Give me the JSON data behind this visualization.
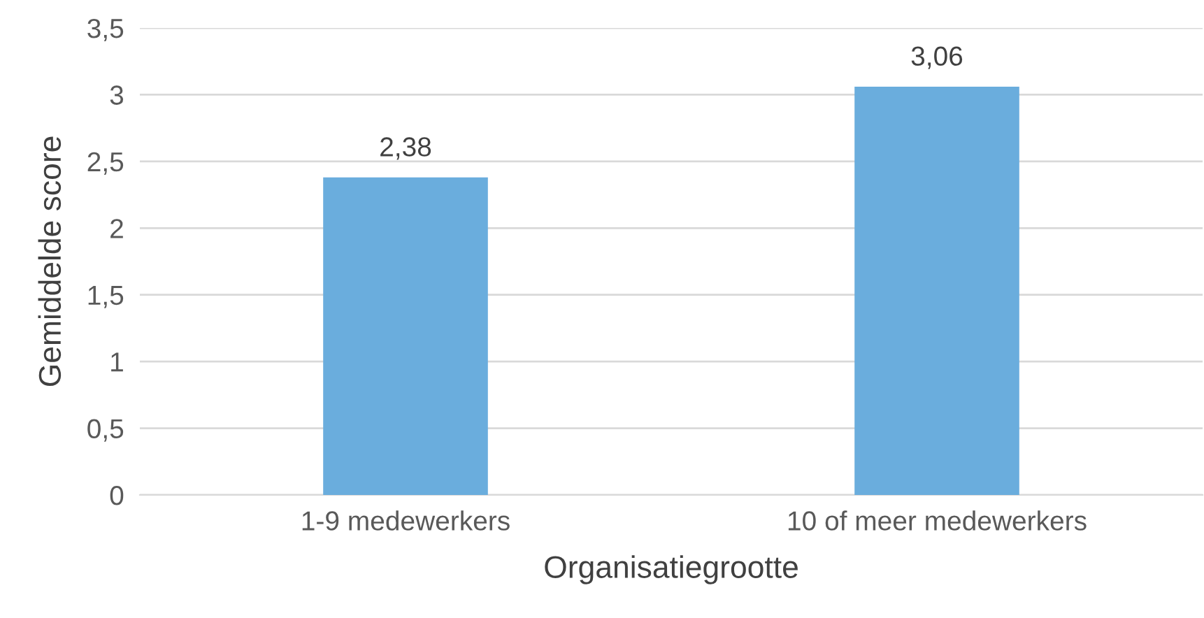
{
  "chart_data": {
    "type": "bar",
    "xlabel": "Organisatiegrootte",
    "ylabel": "Gemiddelde score",
    "categories": [
      "1-9 medewerkers",
      "10 of meer medewerkers"
    ],
    "values": [
      2.38,
      3.06
    ],
    "value_labels": [
      "2,38",
      "3,06"
    ],
    "color": "#6aaddd",
    "ylim": [
      0,
      3.5
    ],
    "yticks": [
      0,
      {
        "value": 0.5,
        "label": "0,5"
      },
      1,
      {
        "value": 1.5,
        "label": "1,5"
      },
      2,
      {
        "value": 2.5,
        "label": "2,5"
      },
      3,
      {
        "value": 3.5,
        "label": "3,5"
      }
    ],
    "grid": "y",
    "legend": false
  }
}
